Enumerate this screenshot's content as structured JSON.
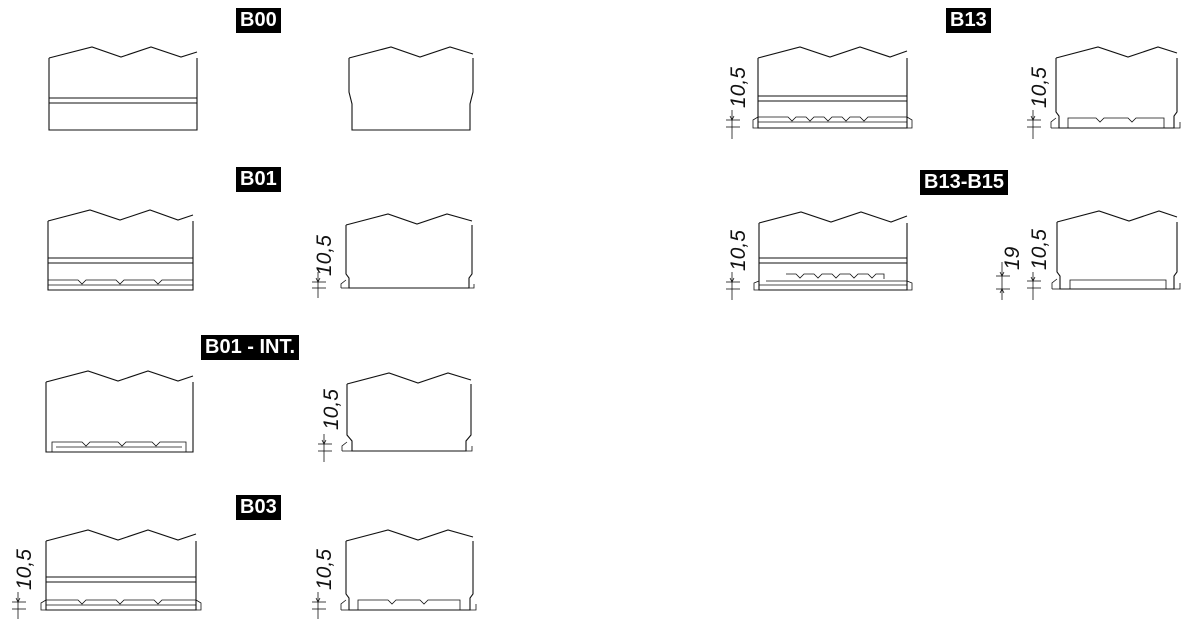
{
  "labels": {
    "b00": "B00",
    "b01": "B01",
    "b01_int": "B01 - INT.",
    "b03": "B03",
    "b13": "B13",
    "b13_b15": "B13-B15"
  },
  "dimensions": {
    "d10_5": "10,5",
    "d19": "19"
  },
  "colors": {
    "ink": "#111111",
    "label_bg": "#000000",
    "label_text": "#ffffff"
  }
}
